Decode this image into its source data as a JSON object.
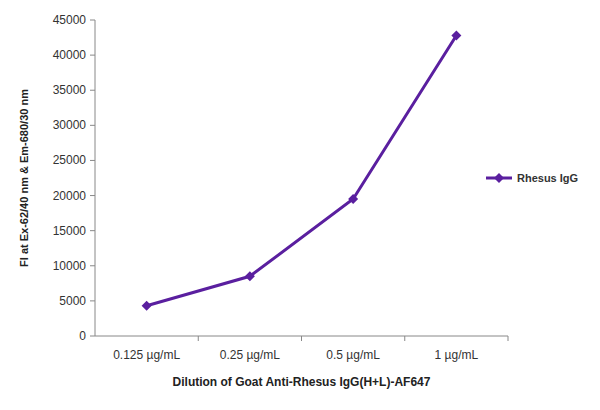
{
  "chart_data": {
    "type": "line",
    "categories": [
      "0.125 µg/mL",
      "0.25 µg/mL",
      "0.5 µg/mL",
      "1 µg/mL"
    ],
    "series": [
      {
        "name": "Rhesus IgG",
        "color": "#5a1f9f",
        "marker": "diamond",
        "values": [
          4300,
          8500,
          19500,
          42800
        ]
      }
    ],
    "x_label": "Dilution of Goat Anti-Rhesus IgG(H+L)-AF647",
    "y_label": "FI at Ex-62/40 nm & Em-680/30 nm",
    "ylim": [
      0,
      45000
    ],
    "yticks": [
      0,
      5000,
      10000,
      15000,
      20000,
      25000,
      30000,
      35000,
      40000,
      45000
    ],
    "grid": false,
    "legend": "right"
  }
}
